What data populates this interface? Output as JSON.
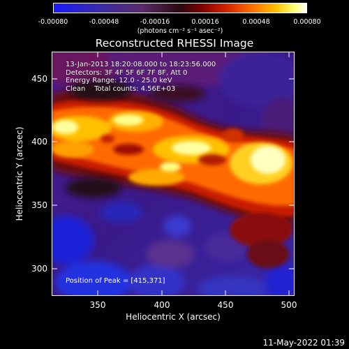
{
  "colorbar": {
    "labels": [
      "-0.00080",
      "-0.00048",
      "-0.00016",
      "0.00016",
      "0.00048",
      "0.00080"
    ],
    "units": "(photons cm⁻² s⁻¹ asec⁻²)"
  },
  "title": "Reconstructed RHESSI Image",
  "info_lines": {
    "line1": "13-Jan-2013 18:20:08.000 to 18:23:56.000",
    "line2": "Detectors: 3F 4F 5F 6F 7F 8F, Att 0",
    "line3": "Energy Range: 12.0 - 25.0 keV",
    "line4": "Clean    Total counts: 4.56E+03"
  },
  "peak_text": "Position of Peak = [415,371]",
  "footer": {
    "datestamp": "11-May-2022 01:39"
  },
  "chart_data": {
    "type": "heatmap",
    "title": "Reconstructed RHESSI Image",
    "xlabel": "Heliocentric X (arcsec)",
    "ylabel": "Heliocentric Y (arcsec)",
    "xticks": [
      "350",
      "400",
      "450",
      "500"
    ],
    "yticks": [
      "450",
      "400",
      "350",
      "300"
    ],
    "xlim": [
      316,
      506
    ],
    "ylim": [
      275,
      470
    ],
    "colorbar_range": [
      -0.0008,
      0.0008
    ],
    "peak": [
      415,
      371
    ]
  }
}
